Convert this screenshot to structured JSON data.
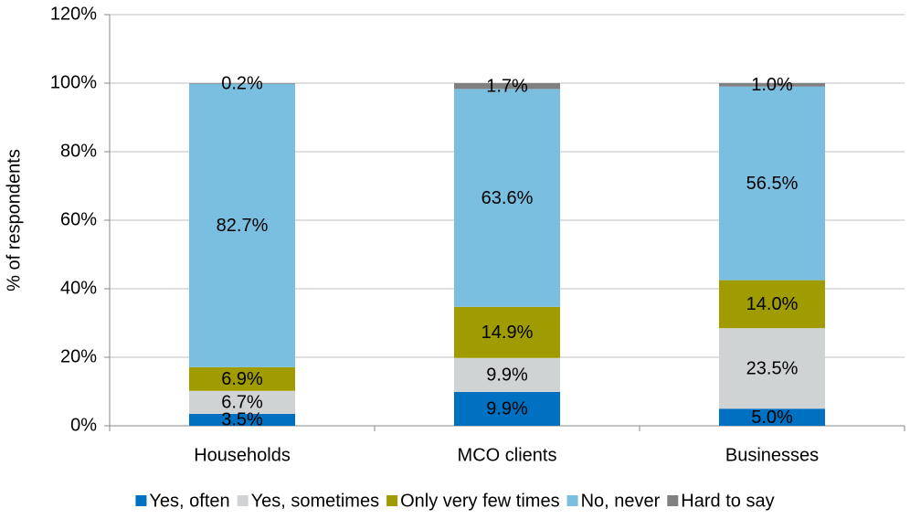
{
  "chart_data": {
    "type": "stacked_bar",
    "y_label": "% of respondents",
    "categories": [
      "Households",
      "MCO clients",
      "Businesses"
    ],
    "series": [
      {
        "name": "Yes, often",
        "color": "#0070c0",
        "values": [
          3.5,
          9.9,
          5.0
        ],
        "value_labels": [
          "3.5%",
          "9.9%",
          "5.0%"
        ]
      },
      {
        "name": "Yes, sometimes",
        "color": "#d0d3d4",
        "values": [
          6.7,
          9.9,
          23.5
        ],
        "value_labels": [
          "6.7%",
          "9.9%",
          "23.5%"
        ]
      },
      {
        "name": "Only very few times",
        "color": "#a09c00",
        "values": [
          6.9,
          14.9,
          14.0
        ],
        "value_labels": [
          "6.9%",
          "14.9%",
          "14.0%"
        ]
      },
      {
        "name": "No, never",
        "color": "#7bbfe0",
        "values": [
          82.7,
          63.6,
          56.5
        ],
        "value_labels": [
          "82.7%",
          "63.6%",
          "56.5%"
        ]
      },
      {
        "name": "Hard to say",
        "color": "#808080",
        "values": [
          0.2,
          1.7,
          1.0
        ],
        "value_labels": [
          "0.2%",
          "1.7%",
          "1.0%"
        ]
      }
    ],
    "ylim": [
      0,
      120
    ],
    "yticks": [
      {
        "value": 0,
        "label": "0%"
      },
      {
        "value": 20,
        "label": "20%"
      },
      {
        "value": 40,
        "label": "40%"
      },
      {
        "value": 60,
        "label": "60%"
      },
      {
        "value": 80,
        "label": "80%"
      },
      {
        "value": 100,
        "label": "100%"
      },
      {
        "value": 120,
        "label": "120%"
      }
    ],
    "grid": true,
    "legend": "bottom"
  }
}
